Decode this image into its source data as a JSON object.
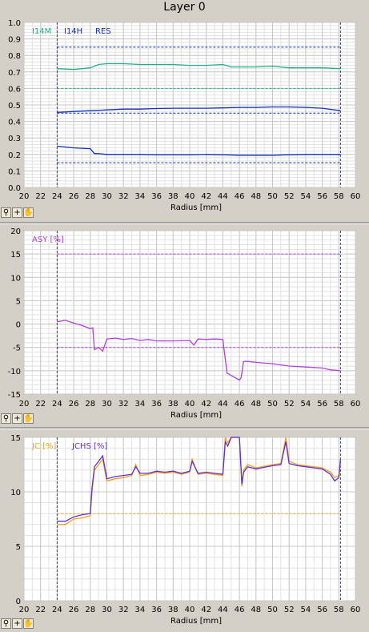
{
  "window": {
    "title": "Layer 0"
  },
  "toolbar": {
    "icons": [
      "zoom-icon",
      "plus-icon",
      "hand-icon"
    ],
    "plus_label": "+"
  },
  "colors": {
    "green": "#20b090",
    "blue": "#1030c0",
    "purple": "#b040e0",
    "orange": "#f0a020",
    "violet": "#6030d0",
    "grid": "#c8c8c8",
    "bg": "#ffffff"
  },
  "chart_data": [
    {
      "type": "line",
      "title": "",
      "xlabel": "Radius [mm]",
      "ylabel": "",
      "xlim": [
        20,
        60
      ],
      "ylim": [
        0,
        1.0
      ],
      "xticks": [
        20,
        22,
        24,
        26,
        28,
        30,
        32,
        34,
        36,
        38,
        40,
        42,
        44,
        46,
        48,
        50,
        52,
        54,
        56,
        58,
        60
      ],
      "xtick_labels": [
        "20",
        "22",
        "24",
        "26",
        "28",
        "30",
        "32",
        "34",
        "36",
        "38",
        "40",
        "42",
        "44",
        "46",
        "48",
        "50",
        "52",
        "54",
        "56",
        "58",
        "60"
      ],
      "yticks": [
        0,
        0.1,
        0.2,
        0.3,
        0.4,
        0.5,
        0.6,
        0.7,
        0.8,
        0.9,
        1.0
      ],
      "ytick_labels": [
        "0.0",
        "0.1",
        "0.2",
        "0.3",
        "0.4",
        "0.5",
        "0.6",
        "0.7",
        "0.8",
        "0.9",
        "1.0"
      ],
      "grid": true,
      "legend": [
        "I14M",
        "I14H",
        "RES"
      ],
      "vlines": [
        24,
        58.2
      ],
      "hlines": [
        {
          "y": 0.85,
          "color": "blue"
        },
        {
          "y": 0.6,
          "color": "green"
        },
        {
          "y": 0.45,
          "color": "blue"
        },
        {
          "y": 0.15,
          "color": "blue"
        }
      ],
      "series": [
        {
          "name": "I14M",
          "color": "green",
          "x": [
            24,
            26,
            28,
            29,
            30,
            32,
            34,
            36,
            38,
            40,
            42,
            44,
            45,
            46,
            48,
            50,
            52,
            54,
            56,
            58.2
          ],
          "y": [
            0.72,
            0.715,
            0.725,
            0.745,
            0.75,
            0.75,
            0.745,
            0.745,
            0.745,
            0.74,
            0.74,
            0.745,
            0.73,
            0.73,
            0.73,
            0.735,
            0.725,
            0.725,
            0.725,
            0.72
          ]
        },
        {
          "name": "I14H",
          "color": "blue",
          "x": [
            24,
            26,
            28,
            30,
            32,
            34,
            36,
            38,
            40,
            42,
            44,
            46,
            48,
            50,
            52,
            54,
            56,
            58.2
          ],
          "y": [
            0.455,
            0.46,
            0.465,
            0.47,
            0.475,
            0.475,
            0.478,
            0.48,
            0.48,
            0.48,
            0.482,
            0.485,
            0.485,
            0.488,
            0.488,
            0.485,
            0.48,
            0.465
          ]
        },
        {
          "name": "RES",
          "color": "blue",
          "x": [
            24,
            26,
            28,
            28.5,
            29,
            30,
            32,
            34,
            36,
            38,
            40,
            42,
            44,
            46,
            48,
            50,
            52,
            54,
            56,
            58.2
          ],
          "y": [
            0.25,
            0.24,
            0.235,
            0.205,
            0.205,
            0.2,
            0.2,
            0.2,
            0.198,
            0.198,
            0.198,
            0.2,
            0.198,
            0.195,
            0.195,
            0.195,
            0.198,
            0.2,
            0.2,
            0.2
          ]
        }
      ]
    },
    {
      "type": "line",
      "title": "",
      "xlabel": "Radius [mm]",
      "ylabel": "",
      "xlim": [
        20,
        60
      ],
      "ylim": [
        -15,
        20
      ],
      "xticks": [
        20,
        22,
        24,
        26,
        28,
        30,
        32,
        34,
        36,
        38,
        40,
        42,
        44,
        46,
        48,
        50,
        52,
        54,
        56,
        58,
        60
      ],
      "xtick_labels": [
        "20",
        "22",
        "24",
        "26",
        "28",
        "30",
        "32",
        "34",
        "36",
        "38",
        "40",
        "42",
        "44",
        "46",
        "48",
        "50",
        "52",
        "54",
        "56",
        "58",
        "60"
      ],
      "yticks": [
        -15,
        -10,
        -5,
        0,
        5,
        10,
        15,
        20
      ],
      "ytick_labels": [
        "-15",
        "-10",
        "-5",
        "0",
        "5",
        "10",
        "15",
        "20"
      ],
      "grid": true,
      "legend": [
        "ASY [%]"
      ],
      "vlines": [
        24,
        58.2
      ],
      "hlines": [
        {
          "y": 15,
          "color": "purple"
        },
        {
          "y": -5,
          "color": "purple"
        }
      ],
      "series": [
        {
          "name": "ASY [%]",
          "color": "purple",
          "x": [
            24,
            25,
            26,
            27,
            28,
            28.3,
            28.5,
            29,
            29.5,
            30,
            31,
            32,
            33,
            34,
            35,
            36,
            38,
            40,
            40.5,
            41,
            42,
            43,
            44,
            44.5,
            45,
            46,
            46.2,
            46.5,
            47,
            48,
            50,
            52,
            54,
            56,
            57,
            58.2
          ],
          "y": [
            0.5,
            0.8,
            0.2,
            -0.3,
            -1.0,
            -0.8,
            -5.5,
            -5.0,
            -5.8,
            -3.2,
            -3.0,
            -3.3,
            -3.1,
            -3.5,
            -3.3,
            -3.6,
            -3.6,
            -3.5,
            -4.5,
            -3.2,
            -3.3,
            -3.2,
            -3.3,
            -10.5,
            -11.0,
            -12.0,
            -11.5,
            -8.0,
            -8.0,
            -8.2,
            -8.5,
            -9.0,
            -9.2,
            -9.4,
            -9.8,
            -10.0
          ]
        }
      ]
    },
    {
      "type": "line",
      "title": "",
      "xlabel": "Radius [mm]",
      "ylabel": "",
      "xlim": [
        20,
        60
      ],
      "ylim": [
        0,
        15
      ],
      "xticks": [
        20,
        22,
        24,
        26,
        28,
        30,
        32,
        34,
        36,
        38,
        40,
        42,
        44,
        46,
        48,
        50,
        52,
        54,
        56,
        58,
        60
      ],
      "xtick_labels": [
        "20",
        "22",
        "24",
        "26",
        "28",
        "30",
        "32",
        "34",
        "36",
        "38",
        "40",
        "42",
        "44",
        "46",
        "48",
        "50",
        "52",
        "54",
        "56",
        "58",
        "60"
      ],
      "yticks": [
        0,
        5,
        10,
        15
      ],
      "ytick_labels": [
        "0",
        "5",
        "10",
        "15"
      ],
      "grid": true,
      "legend": [
        "JC [%]",
        "JCHS [%]"
      ],
      "vlines": [
        24,
        58.2
      ],
      "hlines": [
        {
          "y": 8.0,
          "color": "orange"
        }
      ],
      "series": [
        {
          "name": "JC [%]",
          "color": "orange",
          "x": [
            24,
            25,
            26,
            27,
            28,
            28.2,
            28.5,
            29,
            29.5,
            30,
            31,
            32,
            33,
            33.5,
            34,
            35,
            36,
            37,
            38,
            39,
            40,
            40.3,
            40.8,
            41,
            42,
            43,
            44,
            44.3,
            44.6,
            45,
            46,
            46.3,
            46.5,
            47,
            48,
            50,
            51,
            51.6,
            52,
            53,
            54,
            55,
            56,
            57,
            57.5,
            58,
            58.2
          ],
          "y": [
            7.0,
            7.0,
            7.5,
            7.6,
            7.8,
            10.0,
            12.0,
            12.5,
            13.0,
            11.0,
            11.2,
            11.3,
            11.5,
            12.5,
            11.5,
            11.6,
            11.8,
            11.7,
            11.8,
            11.6,
            11.8,
            13.0,
            12.0,
            11.6,
            11.7,
            11.6,
            11.5,
            15.0,
            14.5,
            15.0,
            15.2,
            10.5,
            12.0,
            12.5,
            12.2,
            12.5,
            12.6,
            15.0,
            12.8,
            12.5,
            12.4,
            12.3,
            12.2,
            11.8,
            11.3,
            11.5,
            12.5
          ]
        },
        {
          "name": "JCHS [%]",
          "color": "violet",
          "x": [
            24,
            25,
            26,
            27,
            28,
            28.2,
            28.5,
            29,
            29.5,
            30,
            31,
            32,
            33,
            33.5,
            34,
            35,
            36,
            37,
            38,
            39,
            40,
            40.3,
            40.8,
            41,
            42,
            43,
            44,
            44.3,
            44.6,
            45,
            46,
            46.3,
            46.5,
            47,
            48,
            50,
            51,
            51.6,
            52,
            53,
            54,
            55,
            56,
            57,
            57.5,
            58,
            58.2
          ],
          "y": [
            7.3,
            7.3,
            7.7,
            7.9,
            8.0,
            10.3,
            12.3,
            12.8,
            13.3,
            11.2,
            11.4,
            11.5,
            11.6,
            12.3,
            11.7,
            11.7,
            11.9,
            11.8,
            11.9,
            11.7,
            11.9,
            12.8,
            12.0,
            11.7,
            11.8,
            11.7,
            11.6,
            14.6,
            14.2,
            15.0,
            15.4,
            10.7,
            11.8,
            12.3,
            12.1,
            12.4,
            12.5,
            14.6,
            12.6,
            12.4,
            12.3,
            12.2,
            12.1,
            11.6,
            11.0,
            11.3,
            13.0
          ]
        }
      ]
    }
  ]
}
